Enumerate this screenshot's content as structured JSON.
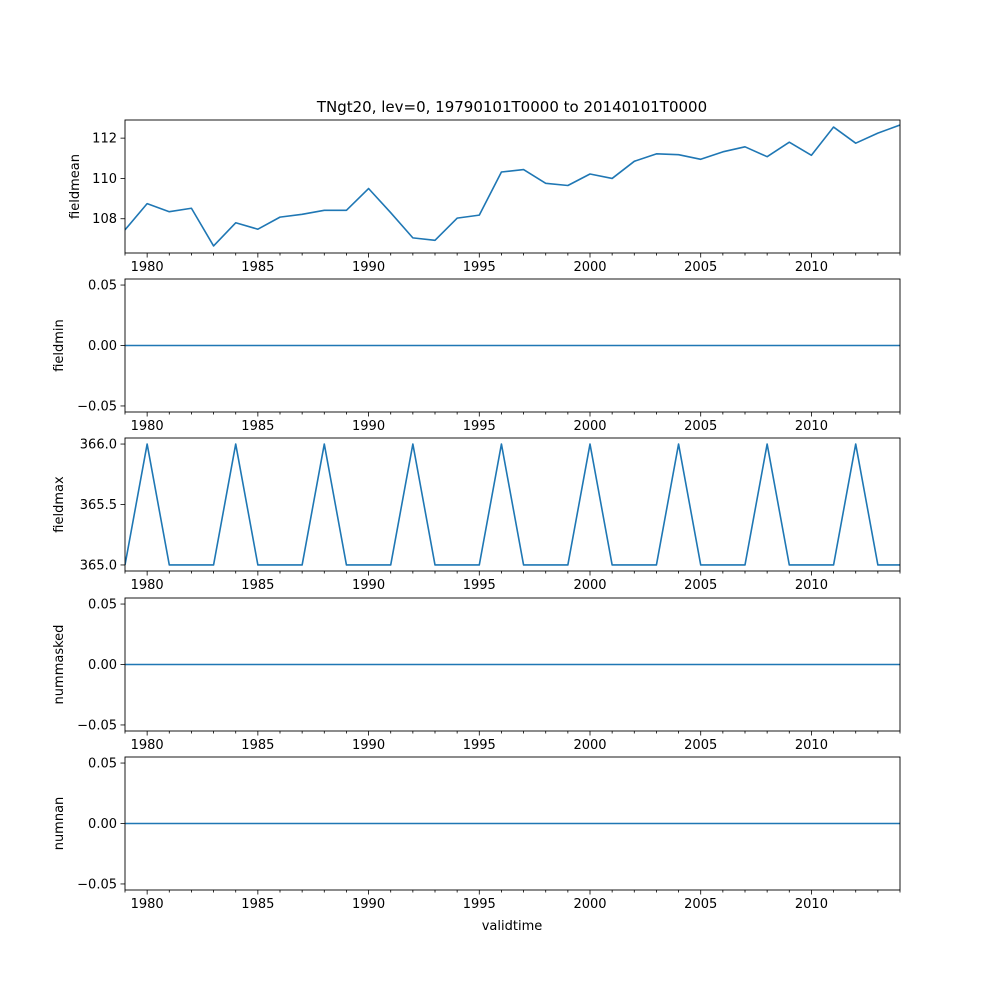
{
  "chart_data": {
    "type": "line",
    "title": "TNgt20, lev=0, 19790101T0000 to 20140101T0000",
    "xlabel": "validtime",
    "xlim": [
      1979,
      2014
    ],
    "x_ticks": [
      1980,
      1985,
      1990,
      1995,
      2000,
      2005,
      2010
    ],
    "x": [
      1979,
      1980,
      1981,
      1982,
      1983,
      1984,
      1985,
      1986,
      1987,
      1988,
      1989,
      1990,
      1991,
      1992,
      1993,
      1994,
      1995,
      1996,
      1997,
      1998,
      1999,
      2000,
      2001,
      2002,
      2003,
      2004,
      2005,
      2006,
      2007,
      2008,
      2009,
      2010,
      2011,
      2012,
      2013,
      2014
    ],
    "line_color": "#1f77b4",
    "grid": false,
    "panels": [
      {
        "ylabel": "fieldmean",
        "ylim": [
          106.3,
          112.9
        ],
        "y_ticks": [
          108,
          110,
          112
        ],
        "y_tick_labels": [
          "108",
          "110",
          "112"
        ],
        "values": [
          107.45,
          108.75,
          108.35,
          108.52,
          106.65,
          107.8,
          107.48,
          108.08,
          108.22,
          108.42,
          108.42,
          109.5,
          108.3,
          107.05,
          106.93,
          108.03,
          108.18,
          110.32,
          110.44,
          109.76,
          109.65,
          110.22,
          110.0,
          110.85,
          111.22,
          111.18,
          110.95,
          111.32,
          111.57,
          111.08,
          111.8,
          111.15,
          112.55,
          111.75,
          112.25,
          112.65
        ]
      },
      {
        "ylabel": "fieldmin",
        "ylim": [
          -0.055,
          0.055
        ],
        "y_ticks": [
          -0.05,
          0.0,
          0.05
        ],
        "y_tick_labels": [
          "−0.05",
          "0.00",
          "0.05"
        ],
        "values": [
          0,
          0,
          0,
          0,
          0,
          0,
          0,
          0,
          0,
          0,
          0,
          0,
          0,
          0,
          0,
          0,
          0,
          0,
          0,
          0,
          0,
          0,
          0,
          0,
          0,
          0,
          0,
          0,
          0,
          0,
          0,
          0,
          0,
          0,
          0,
          0
        ]
      },
      {
        "ylabel": "fieldmax",
        "ylim": [
          364.95,
          366.05
        ],
        "y_ticks": [
          365.0,
          365.5,
          366.0
        ],
        "y_tick_labels": [
          "365.0",
          "365.5",
          "366.0"
        ],
        "values": [
          365,
          366,
          365,
          365,
          365,
          366,
          365,
          365,
          365,
          366,
          365,
          365,
          365,
          366,
          365,
          365,
          365,
          366,
          365,
          365,
          365,
          366,
          365,
          365,
          365,
          366,
          365,
          365,
          365,
          366,
          365,
          365,
          365,
          366,
          365,
          365
        ]
      },
      {
        "ylabel": "nummasked",
        "ylim": [
          -0.055,
          0.055
        ],
        "y_ticks": [
          -0.05,
          0.0,
          0.05
        ],
        "y_tick_labels": [
          "−0.05",
          "0.00",
          "0.05"
        ],
        "values": [
          0,
          0,
          0,
          0,
          0,
          0,
          0,
          0,
          0,
          0,
          0,
          0,
          0,
          0,
          0,
          0,
          0,
          0,
          0,
          0,
          0,
          0,
          0,
          0,
          0,
          0,
          0,
          0,
          0,
          0,
          0,
          0,
          0,
          0,
          0,
          0
        ]
      },
      {
        "ylabel": "numnan",
        "ylim": [
          -0.055,
          0.055
        ],
        "y_ticks": [
          -0.05,
          0.0,
          0.05
        ],
        "y_tick_labels": [
          "−0.05",
          "0.00",
          "0.05"
        ],
        "values": [
          0,
          0,
          0,
          0,
          0,
          0,
          0,
          0,
          0,
          0,
          0,
          0,
          0,
          0,
          0,
          0,
          0,
          0,
          0,
          0,
          0,
          0,
          0,
          0,
          0,
          0,
          0,
          0,
          0,
          0,
          0,
          0,
          0,
          0,
          0,
          0
        ]
      }
    ]
  }
}
